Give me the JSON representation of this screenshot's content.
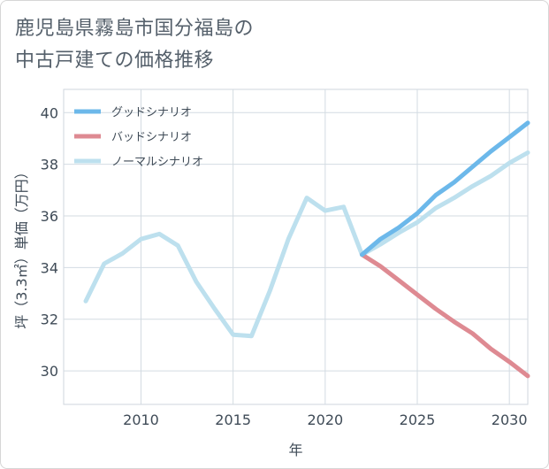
{
  "title": "鹿児島県霧島市国分福島の\n中古戸建ての価格推移",
  "chart_data": {
    "type": "line",
    "xlabel": "年",
    "ylabel": "坪（3.3㎡）単価（万円）",
    "xlim": [
      2005.8,
      2031
    ],
    "ylim": [
      28.7,
      40.9
    ],
    "xticks": [
      2010,
      2015,
      2020,
      2025,
      2030
    ],
    "yticks": [
      30,
      32,
      34,
      36,
      38,
      40
    ],
    "grid": true,
    "legend_position": "top-left",
    "series": [
      {
        "name": "グッドシナリオ",
        "color": "#6cb8ea",
        "x": [
          2022,
          2023,
          2024,
          2025,
          2026,
          2027,
          2028,
          2029,
          2030,
          2031
        ],
        "y": [
          34.5,
          35.1,
          35.55,
          36.1,
          36.8,
          37.3,
          37.9,
          38.5,
          39.05,
          39.6
        ]
      },
      {
        "name": "バッドシナリオ",
        "color": "#de8a92",
        "x": [
          2022,
          2023,
          2024,
          2025,
          2026,
          2027,
          2028,
          2029,
          2030,
          2031
        ],
        "y": [
          34.5,
          34.05,
          33.5,
          32.95,
          32.4,
          31.9,
          31.45,
          30.85,
          30.35,
          29.8
        ]
      },
      {
        "name": "ノーマルシナリオ",
        "color": "#bde0ee",
        "x": [
          2007,
          2008,
          2009,
          2010,
          2011,
          2012,
          2013,
          2014,
          2015,
          2016,
          2017,
          2018,
          2019,
          2020,
          2021,
          2022,
          2023,
          2024,
          2025,
          2026,
          2027,
          2028,
          2029,
          2030,
          2031
        ],
        "y": [
          32.7,
          34.15,
          34.55,
          35.1,
          35.3,
          34.85,
          33.45,
          32.4,
          31.4,
          31.35,
          33.1,
          35.1,
          36.7,
          36.2,
          36.35,
          34.5,
          34.9,
          35.35,
          35.75,
          36.3,
          36.7,
          37.15,
          37.55,
          38.05,
          38.45
        ]
      }
    ]
  }
}
